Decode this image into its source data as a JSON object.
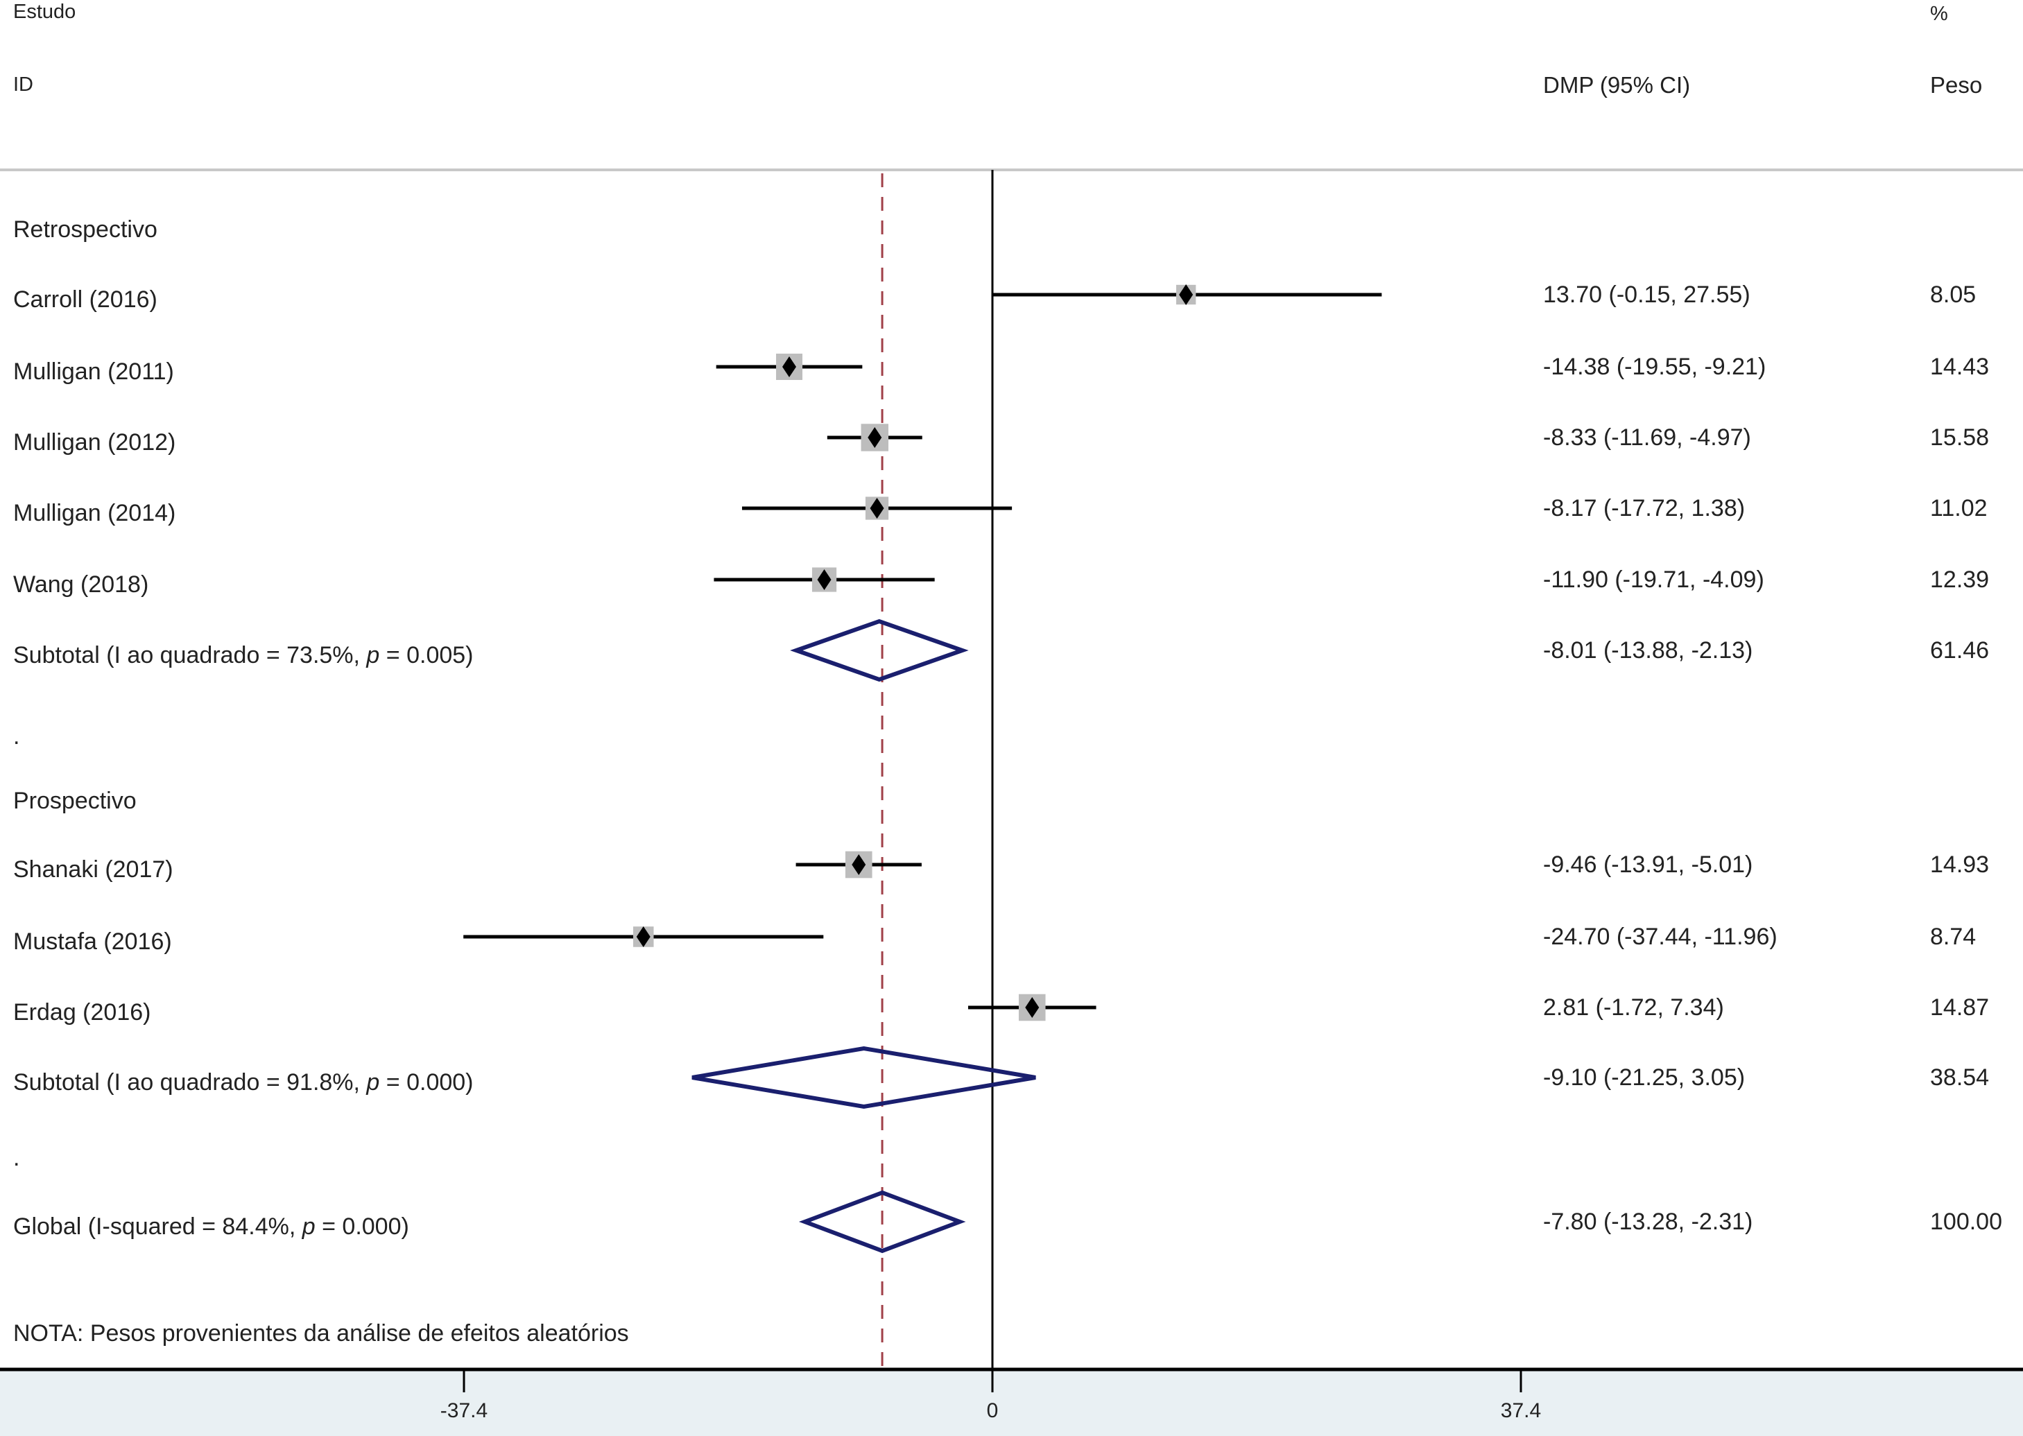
{
  "header": {
    "study": "Estudo",
    "id": "ID",
    "estimate": "DMP (95% CI)",
    "pct": "%",
    "weight": "Peso"
  },
  "note": "NOTA: Pesos provenientes da análise de efeitos aleatórios",
  "colors": {
    "square": "#bdbdbd",
    "diamond": "#1a1f6e",
    "overall_line": "#a04048",
    "axis_band": "#e9f0f3"
  },
  "chart_data": {
    "type": "forest",
    "xlabel": "",
    "xticks": [
      -37.4,
      0,
      37.4
    ],
    "xtick_labels": [
      "-37.4",
      "0",
      "37.4"
    ],
    "overall_line": -7.8,
    "rows": [
      {
        "kind": "group",
        "label": "Retrospectivo"
      },
      {
        "kind": "study",
        "label": "Carroll (2016)",
        "est": 13.7,
        "lo": -0.15,
        "hi": 27.55,
        "text": "13.70 (-0.15, 27.55)",
        "weight": "8.05"
      },
      {
        "kind": "study",
        "label": "Mulligan (2011)",
        "est": -14.38,
        "lo": -19.55,
        "hi": -9.21,
        "text": "-14.38 (-19.55, -9.21)",
        "weight": "14.43"
      },
      {
        "kind": "study",
        "label": "Mulligan (2012)",
        "est": -8.33,
        "lo": -11.69,
        "hi": -4.97,
        "text": "-8.33 (-11.69, -4.97)",
        "weight": "15.58"
      },
      {
        "kind": "study",
        "label": "Mulligan (2014)",
        "est": -8.17,
        "lo": -17.72,
        "hi": 1.38,
        "text": "-8.17 (-17.72, 1.38)",
        "weight": "11.02"
      },
      {
        "kind": "study",
        "label": "Wang (2018)",
        "est": -11.9,
        "lo": -19.71,
        "hi": -4.09,
        "text": "-11.90 (-19.71, -4.09)",
        "weight": "12.39"
      },
      {
        "kind": "subtotal",
        "label": "Subtotal (I ao quadrado = 73.5%, ",
        "p": "p",
        "label_end": " = 0.005)",
        "est": -8.01,
        "lo": -13.88,
        "hi": -2.13,
        "text": "-8.01 (-13.88, -2.13)",
        "weight": "61.46"
      },
      {
        "kind": "spacer",
        "label": "."
      },
      {
        "kind": "group",
        "label": "Prospectivo"
      },
      {
        "kind": "study",
        "label": "Shanaki (2017)",
        "est": -9.46,
        "lo": -13.91,
        "hi": -5.01,
        "text": "-9.46 (-13.91, -5.01)",
        "weight": "14.93"
      },
      {
        "kind": "study",
        "label": "Mustafa (2016)",
        "est": -24.7,
        "lo": -37.44,
        "hi": -11.96,
        "text": "-24.70 (-37.44, -11.96)",
        "weight": "8.74"
      },
      {
        "kind": "study",
        "label": "Erdag (2016)",
        "est": 2.81,
        "lo": -1.72,
        "hi": 7.34,
        "text": "2.81 (-1.72, 7.34)",
        "weight": "14.87"
      },
      {
        "kind": "subtotal",
        "label": "Subtotal (I ao quadrado = 91.8%, ",
        "p": "p",
        "label_end": " = 0.000)",
        "est": -9.1,
        "lo": -21.25,
        "hi": 3.05,
        "text": "-9.10 (-21.25, 3.05)",
        "weight": "38.54"
      },
      {
        "kind": "spacer",
        "label": "."
      },
      {
        "kind": "subtotal",
        "label": "Global (I-squared = 84.4%, ",
        "p": "p",
        "label_end": " = 0.000)",
        "est": -7.8,
        "lo": -13.28,
        "hi": -2.31,
        "text": "-7.80 (-13.28, -2.31)",
        "weight": "100.00"
      }
    ]
  }
}
